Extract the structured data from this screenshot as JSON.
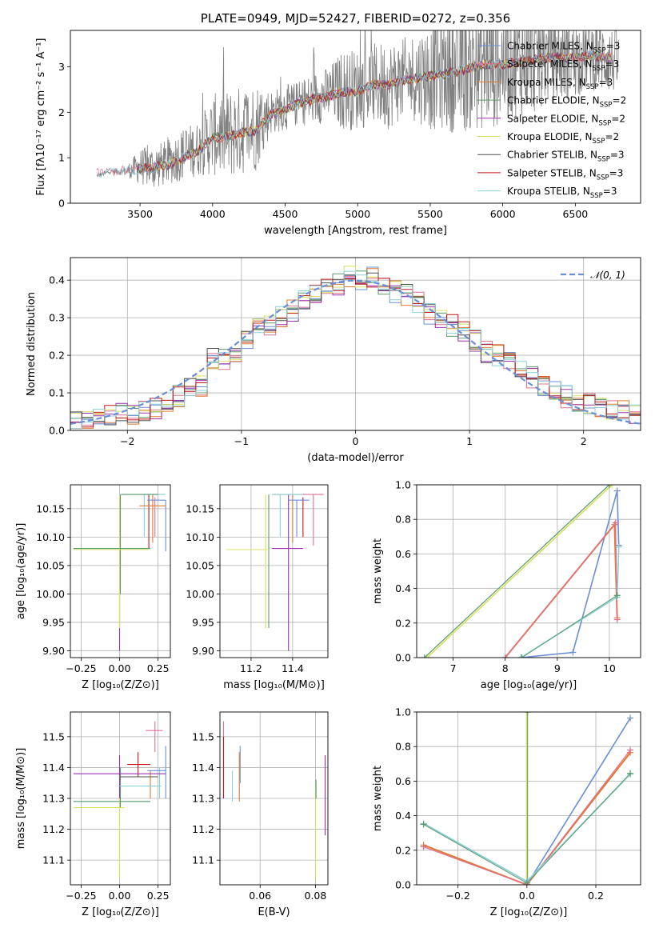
{
  "chart_data": [
    {
      "type": "line",
      "id": "spectrum",
      "title": "PLATE=0949, MJD=52427, FIBERID=0272, z=0.356",
      "xlabel": "wavelength [Angstrom, rest frame]",
      "ylabel": "Flux [fλ10⁻¹⁷ erg cm⁻² s⁻¹ A⁻¹]",
      "xlim": [
        3020,
        6950
      ],
      "ylim": [
        0,
        3.8
      ],
      "xticks": [
        "3500",
        "4000",
        "4500",
        "5000",
        "5500",
        "6000",
        "6500"
      ],
      "yticks": [
        "0",
        "1",
        "2",
        "3"
      ],
      "observed": {
        "color": "#808080",
        "x": [
          3200,
          3300,
          3400,
          3500,
          3600,
          3700,
          3800,
          3900,
          4000,
          4100,
          4200,
          4300,
          4400,
          4500,
          4600,
          4700,
          4800,
          4900,
          5000,
          5100,
          5200,
          5300,
          5400,
          5500,
          5600,
          5700,
          5800,
          5900,
          6000,
          6100,
          6200,
          6300,
          6400,
          6500,
          6600,
          6700,
          6800
        ],
        "y": [
          0.6,
          0.7,
          0.7,
          0.8,
          0.8,
          0.9,
          1.1,
          1.2,
          1.5,
          1.5,
          1.6,
          1.7,
          2.0,
          2.1,
          2.2,
          2.3,
          2.4,
          2.5,
          2.5,
          2.6,
          2.6,
          2.7,
          2.8,
          2.8,
          2.9,
          2.9,
          3.0,
          3.1,
          3.1,
          3.1,
          3.2,
          3.2,
          3.2,
          3.2,
          3.3,
          3.2,
          3.1
        ],
        "noise": [
          0.05,
          0.05,
          0.1,
          0.4,
          0.5,
          0.5,
          0.6,
          0.6,
          0.9,
          1.0,
          1.0,
          1.0,
          0.5,
          0.5,
          0.5,
          0.6,
          0.6,
          0.9,
          0.9,
          0.9,
          1.0,
          0.9,
          1.0,
          1.2,
          1.3,
          1.4,
          1.4,
          1.5,
          1.4,
          1.2,
          1.3,
          1.0,
          1.0,
          0.9,
          0.8,
          0.8,
          0.7
        ]
      },
      "legend_position": "right",
      "series": [
        {
          "name": "Chabrier MILES, N",
          "sub": "SSP",
          "suffix": "=3",
          "color": "#6a8fd8"
        },
        {
          "name": "Salpeter MILES, N",
          "sub": "SSP",
          "suffix": "=3",
          "color": "#e07090"
        },
        {
          "name": "Kroupa MILES, N",
          "sub": "SSP",
          "suffix": "=3",
          "color": "#e07a30"
        },
        {
          "name": "Chabrier ELODIE, N",
          "sub": "SSP",
          "suffix": "=2",
          "color": "#5a9a6a"
        },
        {
          "name": "Salpeter ELODIE, N",
          "sub": "SSP",
          "suffix": "=2",
          "color": "#9b30b0"
        },
        {
          "name": "Kroupa ELODIE, N",
          "sub": "SSP",
          "suffix": "=2",
          "color": "#d8e060"
        },
        {
          "name": "Chabrier STELIB, N",
          "sub": "SSP",
          "suffix": "=3",
          "color": "#505050"
        },
        {
          "name": "Salpeter STELIB, N",
          "sub": "SSP",
          "suffix": "=3",
          "color": "#c01818"
        },
        {
          "name": "Kroupa STELIB, N",
          "sub": "SSP",
          "suffix": "=3",
          "color": "#8ccfd8"
        }
      ],
      "model_x": [
        3200,
        3300,
        3400,
        3500,
        3600,
        3700,
        3800,
        3900,
        4000,
        4100,
        4200,
        4300,
        4400,
        4500,
        4600,
        4700,
        4800,
        4900,
        5000,
        5100,
        5200,
        5300,
        5400,
        5500,
        5600,
        5700,
        5800,
        5900,
        6000,
        6100,
        6200,
        6300,
        6400,
        6500,
        6600,
        6700
      ],
      "model_y": [
        0.65,
        0.7,
        0.72,
        0.75,
        0.8,
        0.85,
        1.0,
        1.15,
        1.45,
        1.45,
        1.55,
        1.6,
        1.95,
        2.05,
        2.2,
        2.3,
        2.35,
        2.45,
        2.45,
        2.6,
        2.6,
        2.7,
        2.75,
        2.8,
        2.85,
        2.9,
        3.0,
        3.05,
        3.05,
        3.1,
        3.15,
        3.2,
        3.2,
        3.2,
        3.25,
        3.2
      ]
    },
    {
      "type": "line",
      "id": "residuals",
      "xlabel": "(data-model)/error",
      "ylabel": "Normed distribution",
      "xlim": [
        -2.5,
        2.5
      ],
      "ylim": [
        0,
        0.46
      ],
      "xticks": [
        "−2",
        "−1",
        "0",
        "1",
        "2"
      ],
      "yticks": [
        "0.0",
        "0.1",
        "0.2",
        "0.3",
        "0.4"
      ],
      "grid": true,
      "legend": "𝒩(0, 1)",
      "gauss_color": "#6a8fd8",
      "bin_width": 0.1,
      "hist": [
        0.02,
        0.03,
        0.04,
        0.04,
        0.05,
        0.04,
        0.05,
        0.06,
        0.07,
        0.09,
        0.11,
        0.12,
        0.19,
        0.19,
        0.21,
        0.24,
        0.27,
        0.28,
        0.3,
        0.32,
        0.35,
        0.36,
        0.38,
        0.39,
        0.41,
        0.4,
        0.41,
        0.39,
        0.37,
        0.36,
        0.34,
        0.31,
        0.3,
        0.28,
        0.26,
        0.24,
        0.21,
        0.2,
        0.18,
        0.16,
        0.14,
        0.12,
        0.1,
        0.09,
        0.08,
        0.07,
        0.06,
        0.05,
        0.05,
        0.04
      ]
    },
    {
      "type": "scatter",
      "id": "age-vs-Z",
      "xlabel": "Z [log₁₀(Z/Z⊙)]",
      "ylabel": "age  [log₁₀(age/yr)]",
      "xlim": [
        -0.32,
        0.33
      ],
      "ylim": [
        9.888,
        10.192
      ],
      "xticks": [
        "−0.25",
        "0.00",
        "0.25"
      ],
      "xtick_values": [
        -0.25,
        0,
        0.25
      ],
      "yticks": [
        "9.90",
        "9.95",
        "10.00",
        "10.05",
        "10.10",
        "10.15"
      ],
      "ytick_values": [
        9.9,
        9.95,
        10.0,
        10.05,
        10.1,
        10.15
      ],
      "grid": true,
      "vlines": [
        {
          "x": 0.0,
          "y0": 9.9,
          "y1": 10.175,
          "c": 4
        },
        {
          "x": 0.0,
          "y0": 9.94,
          "y1": 10.175,
          "c": 5
        },
        {
          "x": 0.005,
          "y0": 10.0,
          "y1": 10.175,
          "c": 3
        },
        {
          "x": 0.16,
          "y0": 10.1,
          "y1": 10.175,
          "c": 8
        },
        {
          "x": 0.19,
          "y0": 10.08,
          "y1": 10.175,
          "c": 7
        },
        {
          "x": 0.215,
          "y0": 10.09,
          "y1": 10.175,
          "c": 2
        },
        {
          "x": 0.23,
          "y0": 10.1,
          "y1": 10.17,
          "c": 1
        },
        {
          "x": 0.3,
          "y0": 10.075,
          "y1": 10.165,
          "c": 0
        }
      ],
      "hlines": [
        {
          "y": 10.078,
          "x0": -0.3,
          "x1": 0.19,
          "c": 5
        },
        {
          "y": 10.08,
          "x0": -0.3,
          "x1": 0.2,
          "c": 3
        },
        {
          "y": 10.155,
          "x0": 0.13,
          "x1": 0.3,
          "c": 2
        },
        {
          "y": 10.165,
          "x0": 0.18,
          "x1": 0.3,
          "c": 0
        },
        {
          "y": 10.175,
          "x0": 0.0,
          "x1": 0.3,
          "c": 8
        },
        {
          "y": 10.175,
          "x0": 0.01,
          "x1": 0.25,
          "c": 3
        }
      ]
    },
    {
      "type": "scatter",
      "id": "age-vs-mass",
      "xlabel": "mass [log₁₀(M/M⊙)]",
      "ylabel": "",
      "xlim": [
        11.05,
        11.57
      ],
      "ylim": [
        9.888,
        10.192
      ],
      "xticks": [
        "11.2",
        "11.4"
      ],
      "xtick_values": [
        11.2,
        11.4
      ],
      "yticks": [
        "9.90",
        "9.95",
        "10.00",
        "10.05",
        "10.10",
        "10.15"
      ],
      "ytick_values": [
        9.9,
        9.95,
        10.0,
        10.05,
        10.1,
        10.15
      ],
      "grid": true,
      "vlines": [
        {
          "x": 11.27,
          "y0": 9.94,
          "y1": 10.175,
          "c": 5
        },
        {
          "x": 11.285,
          "y0": 9.94,
          "y1": 10.175,
          "c": 3
        },
        {
          "x": 11.38,
          "y0": 9.9,
          "y1": 10.175,
          "c": 4
        },
        {
          "x": 11.34,
          "y0": 10.1,
          "y1": 10.175,
          "c": 8
        },
        {
          "x": 11.4,
          "y0": 10.09,
          "y1": 10.175,
          "c": 2
        },
        {
          "x": 11.45,
          "y0": 10.1,
          "y1": 10.17,
          "c": 7
        },
        {
          "x": 11.5,
          "y0": 10.085,
          "y1": 10.175,
          "c": 1
        },
        {
          "x": 11.42,
          "y0": 10.1,
          "y1": 10.165,
          "c": 0
        }
      ],
      "hlines": [
        {
          "y": 10.078,
          "x0": 11.08,
          "x1": 11.285,
          "c": 5
        },
        {
          "y": 10.08,
          "x0": 11.3,
          "x1": 11.45,
          "c": 4
        },
        {
          "y": 10.165,
          "x0": 11.38,
          "x1": 11.48,
          "c": 0
        },
        {
          "y": 10.175,
          "x0": 11.3,
          "x1": 11.55,
          "c": 1
        },
        {
          "y": 10.175,
          "x0": 11.3,
          "x1": 11.45,
          "c": 8
        }
      ]
    },
    {
      "type": "line",
      "id": "massweight-vs-age",
      "xlabel": "age  [log₁₀(age/yr)]",
      "ylabel": "mass weight",
      "xlim": [
        6.3,
        10.6
      ],
      "ylim": [
        0,
        1.0
      ],
      "xticks": [
        "7",
        "8",
        "9",
        "10"
      ],
      "xtick_values": [
        7,
        8,
        9,
        10
      ],
      "yticks": [
        "0.0",
        "0.2",
        "0.4",
        "0.6",
        "0.8",
        "1.0"
      ],
      "ytick_values": [
        0,
        0.2,
        0.4,
        0.6,
        0.8,
        1.0
      ],
      "grid": true,
      "series": [
        {
          "c": 5,
          "x": [
            6.5,
            10.05
          ],
          "y": [
            0.0,
            1.0
          ],
          "w": 1.6
        },
        {
          "c": 3,
          "x": [
            6.45,
            10.0
          ],
          "y": [
            0.0,
            1.0
          ],
          "w": 1.2
        },
        {
          "c": 0,
          "x": [
            8.3,
            9.3,
            10.15,
            10.18
          ],
          "y": [
            0.0,
            0.03,
            0.965,
            0.65
          ],
          "w": 1.6
        },
        {
          "c": 2,
          "x": [
            8.0,
            10.1,
            10.15
          ],
          "y": [
            0.0,
            0.77,
            0.23
          ],
          "w": 2.0
        },
        {
          "c": 1,
          "x": [
            8.0,
            10.12,
            10.15
          ],
          "y": [
            0.0,
            0.78,
            0.22
          ],
          "w": 1.2
        },
        {
          "c": 8,
          "x": [
            8.3,
            10.15,
            10.18
          ],
          "y": [
            0.0,
            0.35,
            0.64
          ],
          "w": 1.6
        },
        {
          "c": 3,
          "x": [
            8.32,
            10.15
          ],
          "y": [
            0.0,
            0.36
          ],
          "w": 1.0
        }
      ]
    },
    {
      "type": "scatter",
      "id": "mass-vs-Z",
      "xlabel": "Z [log₁₀(Z/Z⊙)]",
      "ylabel": "mass [log₁₀(M/M⊙)]",
      "xlim": [
        -0.32,
        0.33
      ],
      "ylim": [
        11.02,
        11.58
      ],
      "xticks": [
        "−0.25",
        "0.00",
        "0.25"
      ],
      "xtick_values": [
        -0.25,
        0,
        0.25
      ],
      "yticks": [
        "11.1",
        "11.2",
        "11.3",
        "11.4",
        "11.5"
      ],
      "ytick_values": [
        11.1,
        11.2,
        11.3,
        11.4,
        11.5
      ],
      "grid": true,
      "vlines": [
        {
          "x": 0.0,
          "y0": 11.04,
          "y1": 11.44,
          "c": 5
        },
        {
          "x": 0.0,
          "y0": 11.3,
          "y1": 11.44,
          "c": 4
        },
        {
          "x": 0.005,
          "y0": 11.27,
          "y1": 11.4,
          "c": 3
        },
        {
          "x": 0.12,
          "y0": 11.37,
          "y1": 11.45,
          "c": 7
        },
        {
          "x": 0.2,
          "y0": 11.3,
          "y1": 11.39,
          "c": 2
        },
        {
          "x": 0.23,
          "y0": 11.45,
          "y1": 11.55,
          "c": 1
        },
        {
          "x": 0.3,
          "y0": 11.3,
          "y1": 11.47,
          "c": 0
        },
        {
          "x": 0.26,
          "y0": 11.3,
          "y1": 11.4,
          "c": 8
        }
      ],
      "hlines": [
        {
          "y": 11.38,
          "x0": -0.3,
          "x1": 0.3,
          "c": 4
        },
        {
          "y": 11.29,
          "x0": -0.3,
          "x1": 0.2,
          "c": 3
        },
        {
          "y": 11.27,
          "x0": -0.3,
          "x1": 0.03,
          "c": 5
        },
        {
          "y": 11.41,
          "x0": 0.05,
          "x1": 0.2,
          "c": 7
        },
        {
          "y": 11.52,
          "x0": 0.17,
          "x1": 0.28,
          "c": 1
        },
        {
          "y": 11.39,
          "x0": 0.18,
          "x1": 0.3,
          "c": 0
        },
        {
          "y": 11.34,
          "x0": 0.0,
          "x1": 0.27,
          "c": 8
        },
        {
          "y": 11.37,
          "x0": 0.0,
          "x1": 0.25,
          "c": 6
        }
      ]
    },
    {
      "type": "scatter",
      "id": "mass-vs-ebv",
      "xlabel": "E(B-V)",
      "ylabel": "",
      "xlim": [
        0.0455,
        0.0845
      ],
      "ylim": [
        11.02,
        11.58
      ],
      "xticks": [
        "0.06",
        "0.08"
      ],
      "xtick_values": [
        0.06,
        0.08
      ],
      "yticks": [
        "11.1",
        "11.2",
        "11.3",
        "11.4",
        "11.5"
      ],
      "ytick_values": [
        11.1,
        11.2,
        11.3,
        11.4,
        11.5
      ],
      "grid": true,
      "vlines": [
        {
          "x": 0.0468,
          "y0": 11.3,
          "y1": 11.55,
          "c": 1
        },
        {
          "x": 0.0468,
          "y0": 11.3,
          "y1": 11.5,
          "c": 7
        },
        {
          "x": 0.05,
          "y0": 11.29,
          "y1": 11.39,
          "c": 8
        },
        {
          "x": 0.0525,
          "y0": 11.29,
          "y1": 11.45,
          "c": 2
        },
        {
          "x": 0.0528,
          "y0": 11.35,
          "y1": 11.47,
          "c": 0
        },
        {
          "x": 0.08,
          "y0": 11.04,
          "y1": 11.34,
          "c": 5
        },
        {
          "x": 0.0802,
          "y0": 11.3,
          "y1": 11.36,
          "c": 3
        },
        {
          "x": 0.0835,
          "y0": 11.18,
          "y1": 11.44,
          "c": 4
        }
      ],
      "hlines": []
    },
    {
      "type": "line",
      "id": "massweight-vs-Z",
      "xlabel": "Z [log₁₀(Z/Z⊙)]",
      "ylabel": "mass weight",
      "xlim": [
        -0.32,
        0.33
      ],
      "ylim": [
        0,
        1.0
      ],
      "xticks": [
        "−0.2",
        "0.0",
        "0.2"
      ],
      "xtick_values": [
        -0.2,
        0,
        0.2
      ],
      "yticks": [
        "0.0",
        "0.2",
        "0.4",
        "0.6",
        "0.8",
        "1.0"
      ],
      "ytick_values": [
        0,
        0.2,
        0.4,
        0.6,
        0.8,
        1.0
      ],
      "grid": true,
      "series": [
        {
          "c": 5,
          "x": [
            0.0,
            0.0
          ],
          "y": [
            0.0,
            1.0
          ],
          "w": 2.2
        },
        {
          "c": 3,
          "x": [
            0.002,
            0.002
          ],
          "y": [
            0.0,
            1.0
          ],
          "w": 1.0
        },
        {
          "c": 0,
          "x": [
            0.0,
            0.3
          ],
          "y": [
            0.0,
            0.965
          ],
          "w": 1.6
        },
        {
          "c": 2,
          "x": [
            -0.3,
            0.0,
            0.3
          ],
          "y": [
            0.23,
            0.0,
            0.765
          ],
          "w": 2.0
        },
        {
          "c": 1,
          "x": [
            -0.3,
            0.0,
            0.3
          ],
          "y": [
            0.22,
            0.0,
            0.78
          ],
          "w": 1.2
        },
        {
          "c": 8,
          "x": [
            -0.3,
            0.0,
            0.3
          ],
          "y": [
            0.355,
            0.02,
            0.64
          ],
          "w": 1.8
        },
        {
          "c": 3,
          "x": [
            -0.3,
            0.0,
            0.3
          ],
          "y": [
            0.35,
            0.01,
            0.645
          ],
          "w": 1.0
        }
      ]
    }
  ]
}
